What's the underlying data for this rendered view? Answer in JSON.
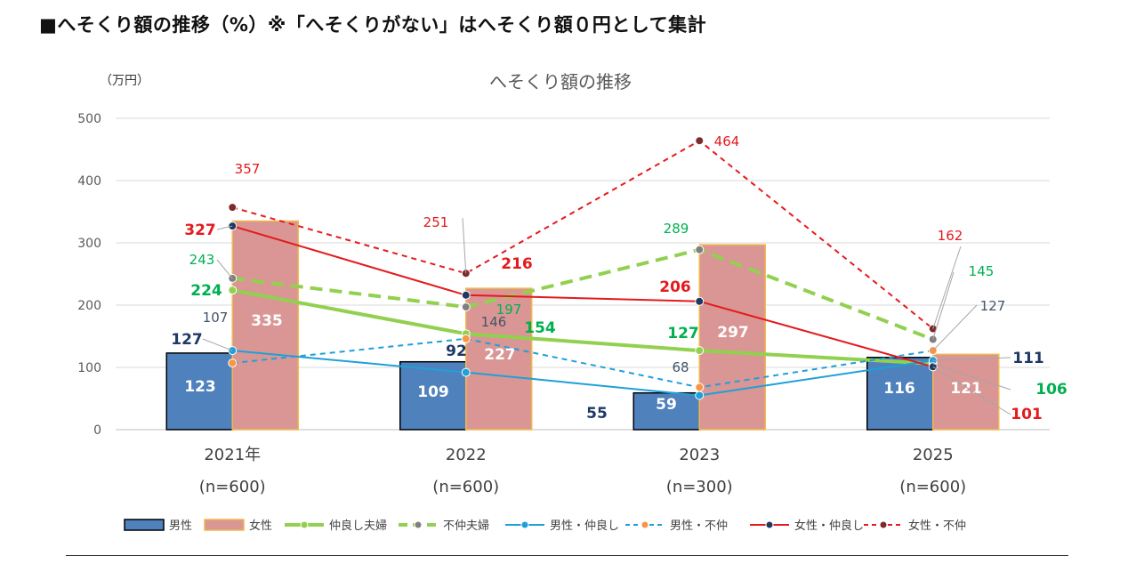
{
  "page_title": "■へそくり額の推移（%）※「へそくりがない」はへそくり額０円として集計",
  "chart_data": {
    "type": "bar",
    "title": "へそくり額の推移",
    "unit": "（万円）",
    "categories": [
      "2021年",
      "2022",
      "2023",
      "2025"
    ],
    "category_notes": [
      "(n=600)",
      "(n=600)",
      "(n=300)",
      "(n=600)"
    ],
    "ylim": [
      0,
      500
    ],
    "yticks": [
      0,
      100,
      200,
      300,
      400,
      500
    ],
    "grid": true,
    "legend_position": "bottom",
    "bar_series": [
      {
        "name": "男性",
        "values": [
          123,
          109,
          59,
          116
        ],
        "color": "#4f81bd",
        "border": "#000000",
        "label_color": "#ffffff"
      },
      {
        "name": "女性",
        "values": [
          335,
          227,
          297,
          121
        ],
        "color": "#d99694",
        "border": "#f2b94a",
        "label_color": "#ffffff"
      }
    ],
    "line_series": [
      {
        "name": "仲良し夫婦",
        "values": [
          224,
          154,
          127,
          106
        ],
        "color": "#92d050",
        "dash": "solid",
        "width": 4,
        "label_color": "#00b050",
        "label_bold": true
      },
      {
        "name": "不仲夫婦",
        "values": [
          243,
          197,
          289,
          145
        ],
        "color": "#92d050",
        "dash": "dashed",
        "width": 4,
        "label_color": "#00b050",
        "label_bold": false
      },
      {
        "name": "男性・仲良し",
        "values": [
          127,
          92,
          55,
          111
        ],
        "color": "#1fa0d8",
        "dash": "solid",
        "width": 2,
        "label_color": "#1f3864",
        "label_bold": true
      },
      {
        "name": "男性・不仲",
        "values": [
          107,
          146,
          68,
          127
        ],
        "color": "#1fa0d8",
        "dash": "dashed",
        "width": 2,
        "label_color": "#44546a",
        "label_bold": false
      },
      {
        "name": "女性・仲良し",
        "values": [
          327,
          216,
          206,
          101
        ],
        "color": "#e41a1c",
        "dash": "solid",
        "width": 2,
        "label_color": "#e41a1c",
        "label_bold": true
      },
      {
        "name": "女性・不仲",
        "values": [
          357,
          251,
          464,
          162
        ],
        "color": "#e41a1c",
        "dash": "dashed",
        "width": 2,
        "label_color": "#e41a1c",
        "label_bold": false
      }
    ],
    "marker_colors": {
      "仲良し夫婦": "#92d050",
      "不仲夫婦": "#808080",
      "男性・仲良し": "#1fa0d8",
      "男性・不仲": "#f79646",
      "女性・仲良し": "#1f3864",
      "女性・不仲": "#7f2a2a"
    }
  }
}
